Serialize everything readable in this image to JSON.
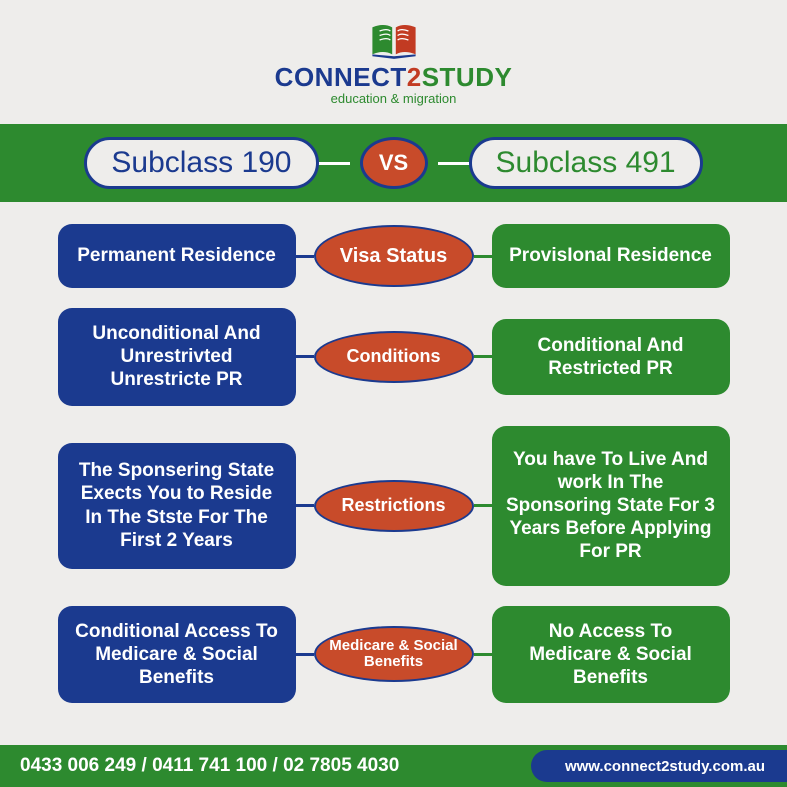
{
  "brand": {
    "part1": "CONNECT",
    "part2": "2",
    "part3": "STUDY",
    "tagline": "education & migration"
  },
  "header": {
    "left": "Subclass 190",
    "vs": "VS",
    "right": "Subclass 491"
  },
  "rows": [
    {
      "left": "Permanent Residence",
      "center": "Visa Status",
      "right": "ProvisIonal Residence",
      "leftHeight": 64,
      "rightHeight": 64,
      "ovalClass": "tall",
      "centerFont": 20
    },
    {
      "left": "Unconditional And  Unrestrivted Unrestricte PR",
      "center": "Conditions",
      "right": "Conditional And Restricted PR",
      "leftHeight": 86,
      "rightHeight": 76,
      "ovalClass": "short",
      "centerFont": 18
    },
    {
      "left": "The Sponsering State Exects You to Reside In The Stste For The First 2 Years",
      "center": "Restrictions",
      "right": "You have To Live And work In The Sponsoring State For 3 Years Before Applying For PR",
      "leftHeight": 126,
      "rightHeight": 160,
      "ovalClass": "short",
      "centerFont": 18
    },
    {
      "left": "Conditional Access To Medicare & Social Benefits",
      "center": "Medicare & Social Benefits",
      "right": "No Access To Medicare & Social Benefits",
      "leftHeight": 88,
      "rightHeight": 88,
      "ovalClass": "small",
      "centerFont": 15
    }
  ],
  "footer": {
    "phones": "0433 006 249 / 0411 741 100 / 02 7805 4030",
    "url": "www.connect2study.com.au"
  },
  "colors": {
    "blue": "#1b3a8f",
    "green": "#2d8a2f",
    "orange": "#c84b2a",
    "bg": "#eeedeb",
    "white": "#ffffff"
  }
}
